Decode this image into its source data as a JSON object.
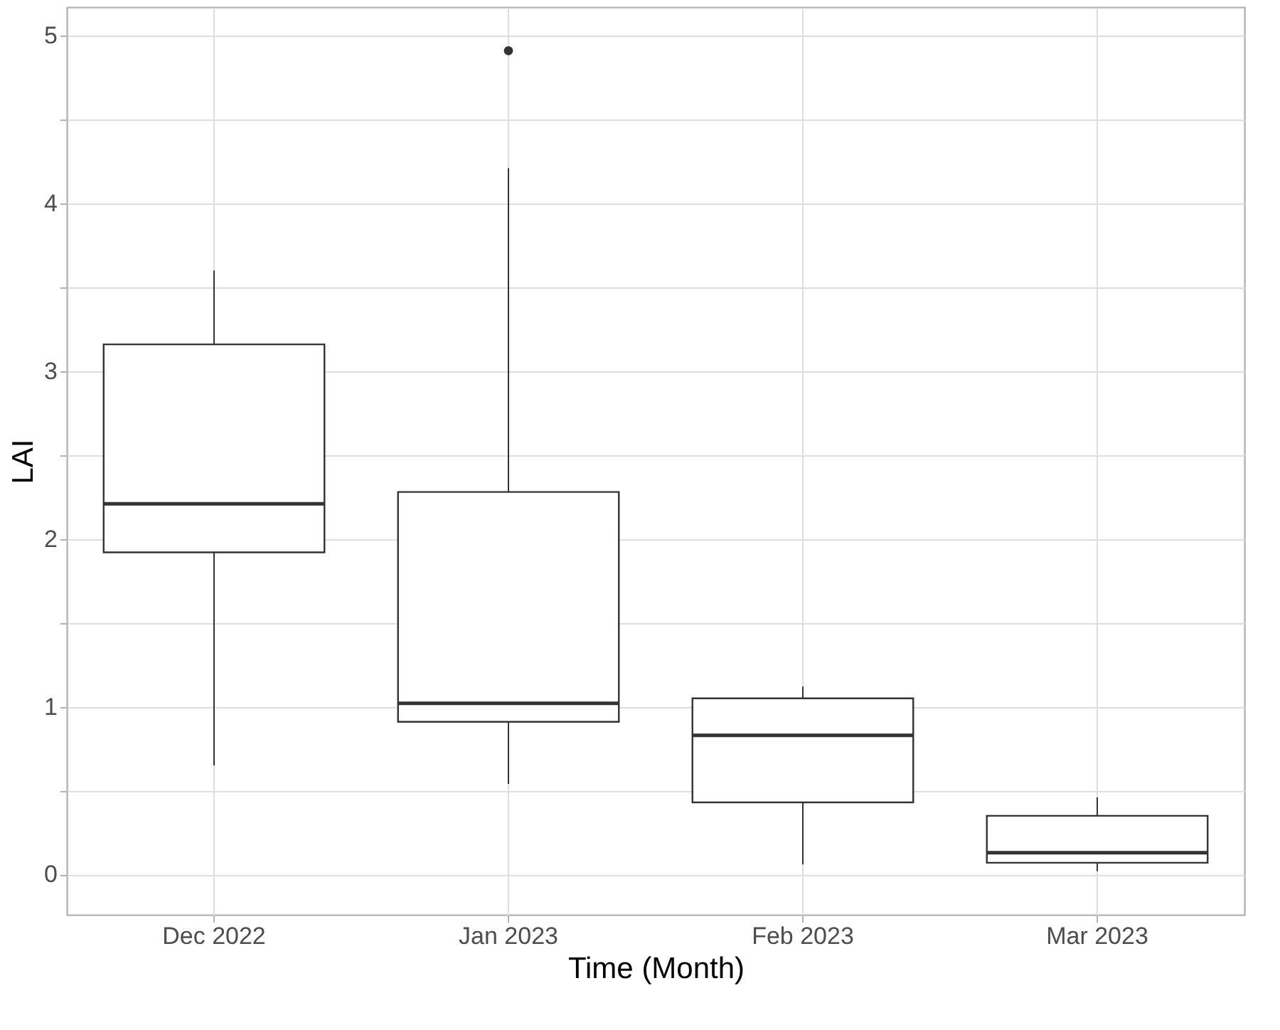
{
  "chart_data": {
    "type": "box",
    "xlabel": "Time (Month)",
    "ylabel": "LAI",
    "categories": [
      "Dec 2022",
      "Jan 2023",
      "Feb 2023",
      "Mar 2023"
    ],
    "boxes": [
      {
        "low": 0.65,
        "q1": 1.92,
        "median": 2.21,
        "q3": 3.16,
        "high": 3.6
      },
      {
        "low": 0.54,
        "q1": 0.91,
        "median": 1.02,
        "q3": 2.28,
        "high": 4.21,
        "outliers": [
          4.91
        ]
      },
      {
        "low": 0.06,
        "q1": 0.43,
        "median": 0.83,
        "q3": 1.05,
        "high": 1.12
      },
      {
        "low": 0.02,
        "q1": 0.07,
        "median": 0.13,
        "q3": 0.35,
        "high": 0.46
      }
    ],
    "ylim": [
      -0.24,
      5.17
    ],
    "yticks": [
      0,
      {
        "value": 0.5,
        "label": null
      },
      1,
      {
        "value": 1.5,
        "label": null
      },
      2,
      {
        "value": 2.5,
        "label": null
      },
      3,
      {
        "value": 3.5,
        "label": null
      },
      4,
      {
        "value": 4.5,
        "label": null
      },
      5
    ],
    "grid": true
  }
}
